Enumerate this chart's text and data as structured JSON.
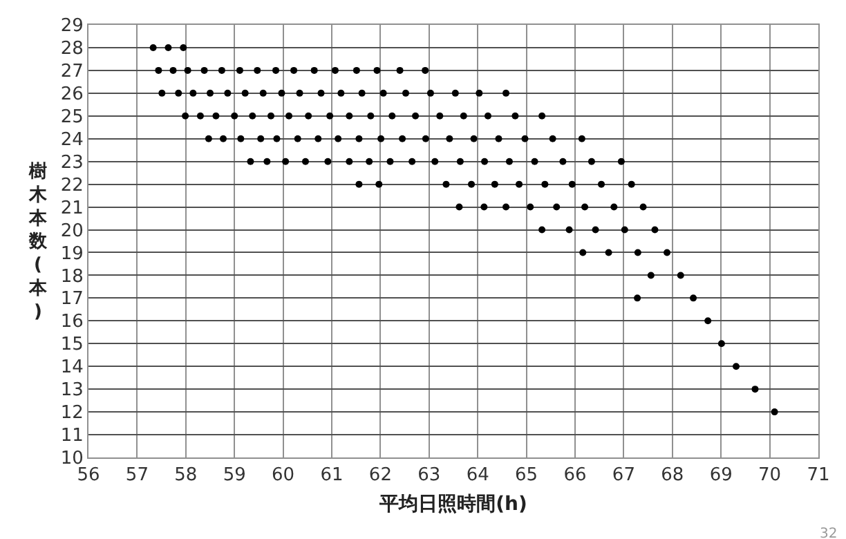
{
  "chart_data": {
    "type": "scatter",
    "xlabel": "平均日照時間(h)",
    "ylabel": "樹木本数(本)",
    "series": [
      {
        "color": "#000000",
        "x": [
          57.33,
          57.64,
          57.95,
          57.44,
          57.74,
          58.04,
          58.38,
          58.74,
          59.11,
          59.47,
          59.85,
          60.22,
          60.64,
          61.07,
          61.51,
          61.93,
          62.4,
          62.92,
          57.51,
          57.85,
          58.15,
          58.5,
          58.86,
          59.22,
          59.59,
          59.97,
          60.34,
          60.78,
          61.19,
          61.62,
          62.06,
          62.52,
          63.03,
          63.54,
          64.03,
          64.58,
          57.99,
          58.3,
          58.62,
          59.0,
          59.37,
          59.75,
          60.12,
          60.52,
          60.96,
          61.36,
          61.8,
          62.24,
          62.72,
          63.22,
          63.71,
          64.21,
          64.77,
          65.32,
          58.47,
          58.77,
          59.13,
          59.54,
          59.87,
          60.3,
          60.72,
          61.13,
          61.56,
          62.01,
          62.45,
          62.93,
          63.42,
          63.92,
          64.43,
          64.97,
          65.54,
          66.14,
          59.33,
          59.67,
          60.05,
          60.46,
          60.92,
          61.36,
          61.77,
          62.2,
          62.65,
          63.12,
          63.64,
          64.14,
          64.65,
          65.17,
          65.75,
          66.34,
          66.95,
          61.56,
          61.97,
          63.35,
          63.87,
          64.35,
          64.85,
          65.38,
          65.94,
          66.54,
          67.16,
          63.62,
          64.13,
          64.58,
          65.08,
          65.62,
          66.2,
          66.8,
          67.4,
          65.32,
          65.88,
          66.42,
          67.02,
          67.64,
          66.16,
          66.69,
          67.29,
          67.89,
          67.56,
          68.17,
          67.28,
          68.43,
          68.73,
          69.01,
          69.31,
          69.7,
          70.1
        ],
        "values": [
          28,
          28,
          28,
          27,
          27,
          27,
          27,
          27,
          27,
          27,
          27,
          27,
          27,
          27,
          27,
          27,
          27,
          27,
          26,
          26,
          26,
          26,
          26,
          26,
          26,
          26,
          26,
          26,
          26,
          26,
          26,
          26,
          26,
          26,
          26,
          26,
          25,
          25,
          25,
          25,
          25,
          25,
          25,
          25,
          25,
          25,
          25,
          25,
          25,
          25,
          25,
          25,
          25,
          25,
          24,
          24,
          24,
          24,
          24,
          24,
          24,
          24,
          24,
          24,
          24,
          24,
          24,
          24,
          24,
          24,
          24,
          24,
          23,
          23,
          23,
          23,
          23,
          23,
          23,
          23,
          23,
          23,
          23,
          23,
          23,
          23,
          23,
          23,
          23,
          22,
          22,
          22,
          22,
          22,
          22,
          22,
          22,
          22,
          22,
          21,
          21,
          21,
          21,
          21,
          21,
          21,
          21,
          20,
          20,
          20,
          20,
          20,
          19,
          19,
          19,
          19,
          18,
          18,
          17,
          17,
          16,
          15,
          14,
          13,
          12
        ]
      }
    ],
    "xlim": [
      56,
      71
    ],
    "xticks": [
      56,
      57,
      58,
      59,
      60,
      61,
      62,
      63,
      64,
      65,
      66,
      67,
      68,
      69,
      70,
      71
    ],
    "ylim": [
      10,
      29
    ],
    "yticks": [
      10,
      11,
      12,
      13,
      14,
      15,
      16,
      17,
      18,
      19,
      20,
      21,
      22,
      23,
      24,
      25,
      26,
      27,
      28,
      29
    ],
    "grid": true,
    "marker": "circle",
    "annotations": [
      "32"
    ]
  }
}
